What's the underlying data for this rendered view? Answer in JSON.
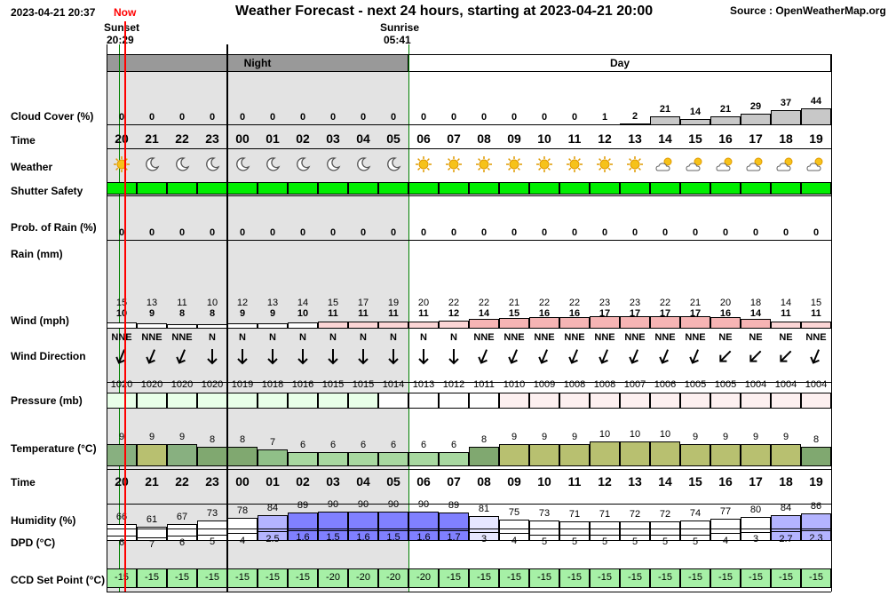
{
  "header": {
    "datetime": "2023-04-21 20:37",
    "now_label": "Now",
    "title": "Weather Forecast - next 24 hours, starting at 2023-04-21 20:00",
    "source": "Source : OpenWeatherMap.org",
    "sunset_label": "Sunset",
    "sunset_time": "20:29",
    "sunrise_label": "Sunrise",
    "sunrise_time": "05:41",
    "night_label": "Night",
    "day_label": "Day"
  },
  "labels": {
    "cloud": "Cloud Cover (%)",
    "time": "Time",
    "weather": "Weather",
    "shutter": "Shutter Safety",
    "prob_rain": "Prob. of Rain (%)",
    "rain": "Rain (mm)",
    "wind": "Wind (mph)",
    "wind_dir": "Wind Direction",
    "pressure": "Pressure (mb)",
    "temperature": "Temperature (°C)",
    "time2": "Time",
    "humidity": "Humidity (%)",
    "dpd": "DPD (°C)",
    "ccd": "CCD Set Point (°C)"
  },
  "colors": {
    "night_band": "#999999",
    "night_bg": "#e3e3e3",
    "now_line": "#ff0000",
    "safe_green": "#00ee00",
    "sunrise_line": "#008000",
    "ccd_cell": "#a6f0a6"
  },
  "hours": [
    "20",
    "21",
    "22",
    "23",
    "00",
    "01",
    "02",
    "03",
    "04",
    "05",
    "06",
    "07",
    "08",
    "09",
    "10",
    "11",
    "12",
    "13",
    "14",
    "15",
    "16",
    "17",
    "18",
    "19"
  ],
  "cloud": [
    "0",
    "0",
    "0",
    "0",
    "0",
    "0",
    "0",
    "0",
    "0",
    "0",
    "0",
    "0",
    "0",
    "0",
    "0",
    "0",
    "1",
    "2",
    "21",
    "14",
    "21",
    "29",
    "37",
    "44"
  ],
  "weather_icons": [
    "sun-icon",
    "moon-icon",
    "moon-icon",
    "moon-icon",
    "moon-icon",
    "moon-icon",
    "moon-icon",
    "moon-icon",
    "moon-icon",
    "moon-icon",
    "sun-icon",
    "sun-icon",
    "sun-icon",
    "sun-icon",
    "sun-icon",
    "sun-icon",
    "sun-icon",
    "sun-icon",
    "partly-cloudy-icon",
    "partly-cloudy-icon",
    "partly-cloudy-icon",
    "partly-cloudy-icon",
    "partly-cloudy-icon",
    "partly-cloudy-icon"
  ],
  "shutter_safe": [
    true,
    true,
    true,
    true,
    true,
    true,
    true,
    true,
    true,
    true,
    true,
    true,
    true,
    true,
    true,
    true,
    true,
    true,
    true,
    true,
    true,
    true,
    true,
    true
  ],
  "prob_rain": [
    "0",
    "0",
    "0",
    "0",
    "0",
    "0",
    "0",
    "0",
    "0",
    "0",
    "0",
    "0",
    "0",
    "0",
    "0",
    "0",
    "0",
    "0",
    "0",
    "0",
    "0",
    "0",
    "0",
    "0"
  ],
  "wind_gust": [
    "15",
    "13",
    "11",
    "10",
    "12",
    "13",
    "14",
    "15",
    "17",
    "19",
    "20",
    "22",
    "22",
    "21",
    "22",
    "22",
    "23",
    "23",
    "22",
    "21",
    "20",
    "18",
    "14",
    "15"
  ],
  "wind_speed": [
    "10",
    "9",
    "8",
    "8",
    "9",
    "9",
    "10",
    "11",
    "11",
    "11",
    "11",
    "12",
    "14",
    "15",
    "16",
    "16",
    "17",
    "17",
    "17",
    "17",
    "16",
    "14",
    "11",
    "11"
  ],
  "wind_dir": [
    "NNE",
    "NNE",
    "NNE",
    "N",
    "N",
    "N",
    "N",
    "N",
    "N",
    "N",
    "N",
    "N",
    "NNE",
    "NNE",
    "NNE",
    "NNE",
    "NNE",
    "NNE",
    "NNE",
    "NNE",
    "NE",
    "NE",
    "NE",
    "NNE"
  ],
  "pressure": [
    "1020",
    "1020",
    "1020",
    "1020",
    "1019",
    "1018",
    "1016",
    "1015",
    "1015",
    "1014",
    "1013",
    "1012",
    "1011",
    "1010",
    "1009",
    "1008",
    "1008",
    "1007",
    "1006",
    "1005",
    "1005",
    "1004",
    "1004",
    "1004"
  ],
  "temperature": [
    "9",
    "9",
    "9",
    "8",
    "8",
    "7",
    "6",
    "6",
    "6",
    "6",
    "6",
    "6",
    "8",
    "9",
    "9",
    "9",
    "10",
    "10",
    "10",
    "9",
    "9",
    "9",
    "9",
    "8"
  ],
  "humidity": [
    "66",
    "61",
    "67",
    "73",
    "78",
    "84",
    "89",
    "90",
    "90",
    "90",
    "90",
    "89",
    "81",
    "75",
    "73",
    "71",
    "71",
    "72",
    "72",
    "74",
    "77",
    "80",
    "84",
    "86"
  ],
  "dpd": [
    "6",
    "7",
    "6",
    "5",
    "4",
    "2.5",
    "1.6",
    "1.5",
    "1.6",
    "1.5",
    "1.6",
    "1.7",
    "3",
    "4",
    "5",
    "5",
    "5",
    "5",
    "5",
    "5",
    "4",
    "3",
    "2.7",
    "2.3"
  ],
  "ccd": [
    "-15",
    "-15",
    "-15",
    "-15",
    "-15",
    "-15",
    "-15",
    "-20",
    "-20",
    "-20",
    "-20",
    "-15",
    "-15",
    "-15",
    "-15",
    "-15",
    "-15",
    "-15",
    "-15",
    "-15",
    "-15",
    "-15",
    "-15",
    "-15"
  ]
}
